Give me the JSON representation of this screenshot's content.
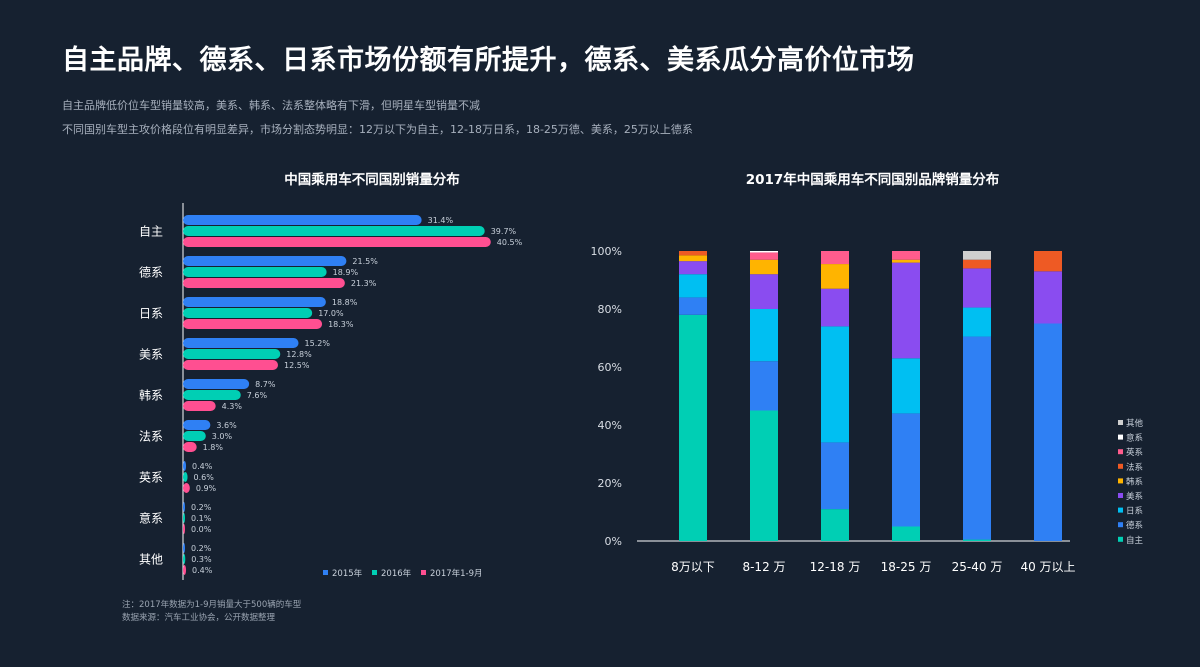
{
  "header": {
    "title": "自主品牌、德系、日系市场份额有所提升，德系、美系瓜分高价位市场",
    "subtitle_1": "自主品牌低价位车型销量较高，美系、韩系、法系整体略有下滑，但明星车型销量不减",
    "subtitle_2": "不同国别车型主攻价格段位有明显差异，市场分割态势明显：12万以下为自主，12-18万日系，18-25万德、美系，25万以上德系"
  },
  "footer": {
    "note": "注：2017年数据为1-9月销量大于500辆的车型",
    "source": "数据来源：汽车工业协会，公开数据整理"
  },
  "colors": {
    "background": "#162130",
    "s2015": "#2f80f4",
    "s2016": "#00cfb4",
    "s2017": "#ff4f91"
  },
  "chart_data": [
    {
      "type": "bar",
      "orientation": "horizontal",
      "title": "中国乘用车不同国别销量分布",
      "categories": [
        "自主",
        "德系",
        "日系",
        "美系",
        "韩系",
        "法系",
        "英系",
        "意系",
        "其他"
      ],
      "series": [
        {
          "name": "2015年",
          "color": "#2f80f4",
          "values": [
            31.4,
            21.5,
            18.8,
            15.2,
            8.7,
            3.6,
            0.4,
            0.2,
            0.2
          ]
        },
        {
          "name": "2016年",
          "color": "#00cfb4",
          "values": [
            39.7,
            18.9,
            17.0,
            12.8,
            7.6,
            3.0,
            0.6,
            0.1,
            0.3
          ]
        },
        {
          "name": "2017年1-9月",
          "color": "#ff4f91",
          "values": [
            40.5,
            21.3,
            18.3,
            12.5,
            4.3,
            1.8,
            0.9,
            0.0,
            0.4
          ]
        }
      ],
      "value_labels": [
        [
          "31.4%",
          "39.7%",
          "40.5%"
        ],
        [
          "21.5%",
          "18.9%",
          "21.3%"
        ],
        [
          "18.8%",
          "17.0%",
          "18.3%"
        ],
        [
          "15.2%",
          "12.8%",
          "12.5%"
        ],
        [
          "8.7%",
          "7.6%",
          "4.3%"
        ],
        [
          "3.6%",
          "3.0%",
          "1.8%"
        ],
        [
          "0.4%",
          "0.6%",
          "0.9%"
        ],
        [
          "0.2%",
          "0.1%",
          "0.0%"
        ],
        [
          "0.2%",
          "0.3%",
          "0.4%"
        ]
      ],
      "unit": "%",
      "legend": "bottom-right"
    },
    {
      "type": "bar",
      "stacked": true,
      "title": "2017年中国乘用车不同国别品牌销量分布",
      "categories": [
        "8万以下",
        "8-12 万",
        "12-18 万",
        "18-25 万",
        "25-40 万",
        "40 万以上"
      ],
      "ylim": [
        0,
        100
      ],
      "yticks": [
        "0%",
        "20%",
        "40%",
        "60%",
        "80%",
        "100%"
      ],
      "legend": "right",
      "series": [
        {
          "name": "自主",
          "color": "#00cfb4",
          "values": [
            78,
            45,
            11,
            5,
            0.5,
            0
          ]
        },
        {
          "name": "德系",
          "color": "#2f80f4",
          "values": [
            6,
            17,
            23,
            39,
            70,
            75
          ]
        },
        {
          "name": "日系",
          "color": "#00bff2",
          "values": [
            8,
            18,
            40,
            19,
            10,
            0
          ]
        },
        {
          "name": "美系",
          "color": "#8a4cf0",
          "values": [
            4.5,
            12,
            13,
            33,
            13.5,
            18
          ]
        },
        {
          "name": "韩系",
          "color": "#ffb400",
          "values": [
            2,
            5,
            8.5,
            1,
            0,
            0
          ]
        },
        {
          "name": "法系",
          "color": "#ee5a24",
          "values": [
            1.5,
            0,
            0,
            0,
            3,
            7
          ]
        },
        {
          "name": "英系",
          "color": "#ff5c8d",
          "values": [
            0,
            2.5,
            4.5,
            3,
            0,
            0
          ]
        },
        {
          "name": "意系",
          "color": "#ffffff",
          "values": [
            0,
            0.5,
            0,
            0,
            0,
            0
          ]
        },
        {
          "name": "其他",
          "color": "#cfcfcf",
          "values": [
            0,
            0,
            0,
            0,
            3,
            0
          ]
        }
      ]
    }
  ]
}
